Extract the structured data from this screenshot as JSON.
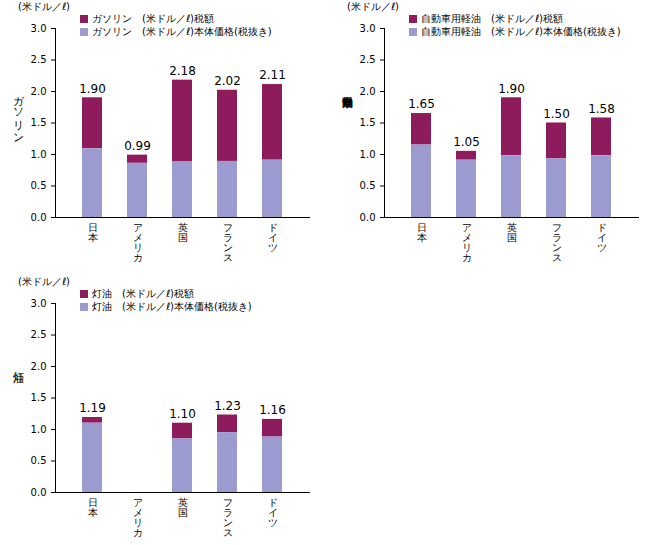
{
  "chart_data": [
    {
      "type": "bar",
      "stacked": true,
      "unit": "(米ドル／ℓ)",
      "ylabel": "ガソリン",
      "legend": "top-left",
      "categories": [
        "日本",
        "アメリカ",
        "英国",
        "フランス",
        "ドイツ"
      ],
      "series": [
        {
          "name": "ガソリン　(米ドル／ℓ)税額",
          "color": "#8e1b5c",
          "values": [
            0.81,
            0.13,
            1.3,
            1.13,
            1.2
          ]
        },
        {
          "name": "ガソリン　(米ドル／ℓ)本体価格(税抜き)",
          "color": "#9b9bd0",
          "values": [
            1.09,
            0.86,
            0.88,
            0.89,
            0.91
          ]
        }
      ],
      "totals": [
        1.9,
        0.99,
        2.18,
        2.02,
        2.11
      ],
      "total_labels": [
        "1.90",
        "0.99",
        "2.18",
        "2.02",
        "2.11"
      ],
      "ylim": [
        0,
        3
      ],
      "yticks": [
        {
          "value": 0,
          "label": "0.0"
        },
        {
          "value": 0.5,
          "label": "0.5"
        },
        {
          "value": 1,
          "label": "1.0"
        },
        {
          "value": 1.5,
          "label": "1.5"
        },
        {
          "value": 2,
          "label": "2.0"
        },
        {
          "value": 2.5,
          "label": "2.5"
        },
        {
          "value": 3,
          "label": "3.0"
        }
      ],
      "grid": false
    },
    {
      "type": "bar",
      "stacked": true,
      "unit": "(米ドル／ℓ)",
      "ylabel": "自動車用軽油",
      "legend": "top-left",
      "categories": [
        "日本",
        "アメリカ",
        "英国",
        "フランス",
        "ドイツ"
      ],
      "series": [
        {
          "name": "自動車用軽油　(米ドル／ℓ)税額",
          "color": "#8e1b5c",
          "values": [
            0.5,
            0.14,
            0.92,
            0.57,
            0.6
          ]
        },
        {
          "name": "自動車用軽油　(米ドル／ℓ)本体価格(税抜き)",
          "color": "#9b9bd0",
          "values": [
            1.15,
            0.91,
            0.98,
            0.93,
            0.98
          ]
        }
      ],
      "totals": [
        1.65,
        1.05,
        1.9,
        1.5,
        1.58
      ],
      "total_labels": [
        "1.65",
        "1.05",
        "1.90",
        "1.50",
        "1.58"
      ],
      "ylim": [
        0,
        3
      ],
      "yticks": [
        {
          "value": 0,
          "label": "0.0"
        },
        {
          "value": 0.5,
          "label": "0.5"
        },
        {
          "value": 1,
          "label": "1.0"
        },
        {
          "value": 1.5,
          "label": "1.5"
        },
        {
          "value": 2,
          "label": "2.0"
        },
        {
          "value": 2.5,
          "label": "2.5"
        },
        {
          "value": 3,
          "label": "3.0"
        }
      ],
      "grid": false
    },
    {
      "type": "bar",
      "stacked": true,
      "unit": "(米ドル／ℓ)",
      "ylabel": "灯油",
      "legend": "top-left",
      "categories": [
        "日本",
        "アメリカ",
        "英国",
        "フランス",
        "ドイツ"
      ],
      "series": [
        {
          "name": "灯油　(米ドル／ℓ)税額",
          "color": "#8e1b5c",
          "values": [
            0.09,
            null,
            0.25,
            0.28,
            0.28
          ]
        },
        {
          "name": "灯油　(米ドル／ℓ)本体価格(税抜き)",
          "color": "#9b9bd0",
          "values": [
            1.1,
            null,
            0.85,
            0.95,
            0.88
          ]
        }
      ],
      "totals": [
        1.19,
        null,
        1.1,
        1.23,
        1.16
      ],
      "total_labels": [
        "1.19",
        null,
        "1.10",
        "1.23",
        "1.16"
      ],
      "ylim": [
        0,
        3
      ],
      "yticks": [
        {
          "value": 0,
          "label": "0.0"
        },
        {
          "value": 0.5,
          "label": "0.5"
        },
        {
          "value": 1,
          "label": "1.0"
        },
        {
          "value": 1.5,
          "label": "1.5"
        },
        {
          "value": 2,
          "label": "2.0"
        },
        {
          "value": 2.5,
          "label": "2.5"
        },
        {
          "value": 3,
          "label": "3.0"
        }
      ],
      "grid": false
    }
  ]
}
